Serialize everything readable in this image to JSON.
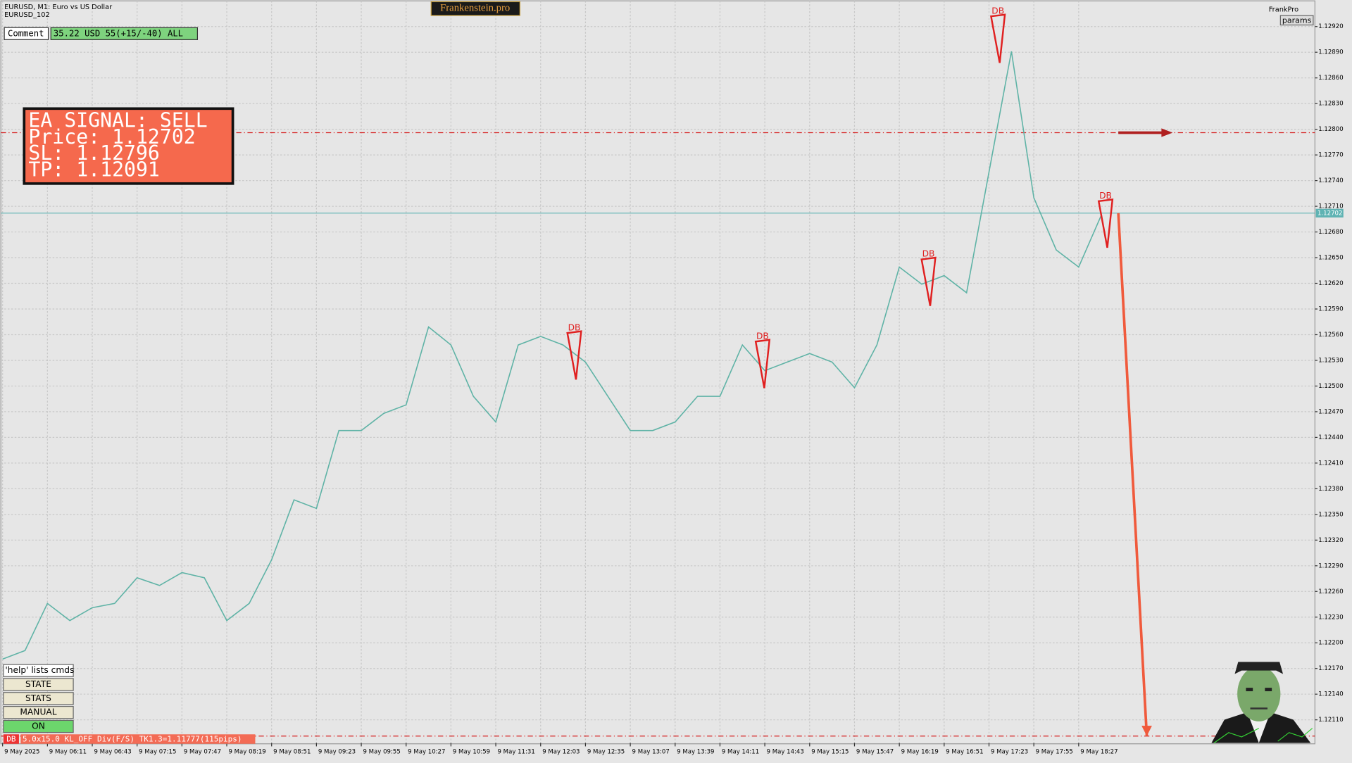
{
  "header": {
    "symbol": "EURUSD, M1:  Euro vs US Dollar",
    "account": "EURUSD_102",
    "brand": "Frankenstein.pro",
    "user": "FrankPro",
    "params": "params"
  },
  "comment": {
    "label": "Comment",
    "value": "35.22 USD 55(+15/-40) ALL"
  },
  "signal": {
    "lines": [
      "EA SIGNAL: SELL",
      "Price: 1.12702",
      "SL:    1.12796",
      "TP:    1.12091"
    ]
  },
  "buttons": [
    "'help' lists cmds",
    "STATE",
    "STATS",
    "MANUAL",
    "ON"
  ],
  "status": {
    "tag": "DB",
    "text": "5.0x15.0 KL_OFF Div(F/S) TK1.3=1.11777(115pips)"
  },
  "chart_data": {
    "type": "line",
    "categories": [
      "9 May 2025",
      null,
      "9 May 06:11",
      null,
      "9 May 06:43",
      null,
      "9 May 07:15",
      null,
      "9 May 07:47",
      null,
      "9 May 08:19",
      null,
      "9 May 08:51",
      null,
      "9 May 09:23",
      null,
      "9 May 09:55",
      null,
      "9 May 10:27",
      null,
      "9 May 10:59",
      null,
      "9 May 11:31",
      null,
      "9 May 12:03",
      null,
      "9 May 12:35",
      null,
      "9 May 13:07",
      null,
      "9 May 13:39",
      null,
      "9 May 14:11",
      null,
      "9 May 14:43",
      null,
      "9 May 15:15",
      null,
      "9 May 15:47",
      null,
      "9 May 16:19",
      null,
      "9 May 16:51",
      null,
      "9 May 17:23",
      null,
      "9 May 17:55",
      null,
      "9 May 18:27",
      null
    ],
    "series": [
      {
        "color": "#5fb3a6",
        "values": [
          1.12181,
          1.12191,
          1.12246,
          1.12226,
          1.12241,
          1.12246,
          1.12276,
          1.12267,
          1.12282,
          1.12276,
          1.12226,
          1.12246,
          1.12297,
          1.12367,
          1.12357,
          1.12448,
          1.12448,
          1.12468,
          1.12478,
          1.12569,
          1.12548,
          1.12488,
          1.12458,
          1.12548,
          1.12558,
          1.12548,
          1.12528,
          1.12488,
          1.12448,
          1.12448,
          1.12458,
          1.12488,
          1.12488,
          1.12548,
          1.12518,
          1.12528,
          1.12538,
          1.12528,
          1.12498,
          1.12548,
          1.12639,
          1.12619,
          1.12629,
          1.12609,
          1.1275,
          1.12891,
          1.1272,
          1.12659,
          1.12639,
          1.12699
        ]
      }
    ],
    "ylim": [
      1.12083,
      1.12947
    ],
    "yticks": [
      {
        "value": 1.1292,
        "label": "1.12920"
      },
      {
        "value": 1.1289,
        "label": "1.12890"
      },
      {
        "value": 1.1286,
        "label": "1.12860"
      },
      {
        "value": 1.1283,
        "label": "1.12830"
      },
      {
        "value": 1.128,
        "label": "1.12800"
      },
      {
        "value": 1.1277,
        "label": "1.12770"
      },
      {
        "value": 1.1274,
        "label": "1.12740"
      },
      {
        "value": 1.1271,
        "label": "1.12710"
      },
      {
        "value": 1.1268,
        "label": "1.12680"
      },
      {
        "value": 1.1265,
        "label": "1.12650"
      },
      {
        "value": 1.1262,
        "label": "1.12620"
      },
      {
        "value": 1.1259,
        "label": "1.12590"
      },
      {
        "value": 1.1256,
        "label": "1.12560"
      },
      {
        "value": 1.1253,
        "label": "1.12530"
      },
      {
        "value": 1.125,
        "label": "1.12500"
      },
      {
        "value": 1.1247,
        "label": "1.12470"
      },
      {
        "value": 1.1244,
        "label": "1.12440"
      },
      {
        "value": 1.1241,
        "label": "1.12410"
      },
      {
        "value": 1.1238,
        "label": "1.12380"
      },
      {
        "value": 1.1235,
        "label": "1.12350"
      },
      {
        "value": 1.1232,
        "label": "1.12320"
      },
      {
        "value": 1.1229,
        "label": "1.12290"
      },
      {
        "value": 1.1226,
        "label": "1.12260"
      },
      {
        "value": 1.1223,
        "label": "1.12230"
      },
      {
        "value": 1.122,
        "label": "1.12200"
      },
      {
        "value": 1.1217,
        "label": "1.12170"
      },
      {
        "value": 1.1214,
        "label": "1.12140"
      },
      {
        "value": 1.1211,
        "label": "1.12110"
      }
    ],
    "grid": true,
    "price_line": {
      "value": 1.12702,
      "label": "1.12702",
      "color": "#5fb3b3"
    },
    "sl_line": {
      "value": 1.12796,
      "color": "#d62020"
    },
    "tp_line": {
      "value": 1.12091,
      "color": "#d62020"
    },
    "annotations": [
      {
        "text": "DB",
        "x": 25.5,
        "y": 1.12568
      },
      {
        "text": "DB",
        "x": 33.9,
        "y": 1.12558
      },
      {
        "text": "DB",
        "x": 41.3,
        "y": 1.12654
      },
      {
        "text": "DB",
        "x": 44.4,
        "y": 1.12938
      },
      {
        "text": "DB",
        "x": 49.2,
        "y": 1.12722
      }
    ]
  }
}
